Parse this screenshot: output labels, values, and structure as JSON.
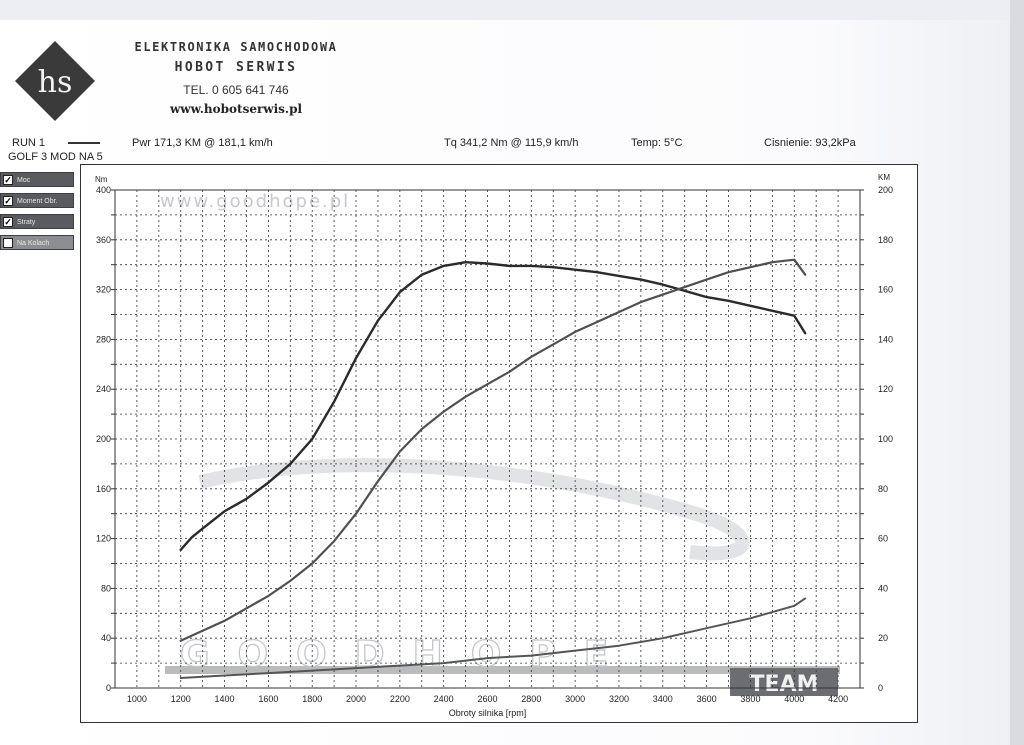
{
  "header": {
    "company": "ELEKTRONIKA SAMOCHODOWA",
    "name": "HOBOT SERWIS",
    "tel": "TEL. 0 605 641 746",
    "website": "www.hobotserwis.pl",
    "logo_text": "hs"
  },
  "run": {
    "label": "RUN 1",
    "car": "GOLF 3 MOD NA 5",
    "power": "Pwr 171,3 KM @ 181,1 km/h",
    "torque": "Tq 341,2 Nm @ 115,9 km/h",
    "temp": "Temp: 5°C",
    "pressure": "Cisnienie: 93,2kPa"
  },
  "legend": [
    {
      "label": "Moc",
      "checked": true
    },
    {
      "label": "Moment Obr.",
      "checked": true
    },
    {
      "label": "Straty",
      "checked": true
    },
    {
      "label": "Na Kolach",
      "checked": false
    }
  ],
  "watermarks": {
    "top": "www.goodhope.pl",
    "bottom": "GOODHOPE",
    "team": "TEAM"
  },
  "colors": {
    "torque": "#2b2b2b",
    "power": "#505050",
    "losses": "#555555",
    "grid": "#333333"
  },
  "chart_data": {
    "type": "line",
    "xlabel": "Obroty silnika [rpm]",
    "ylabel_left": "Nm",
    "ylabel_right": "KM",
    "xlim": [
      900,
      4300
    ],
    "ylim_left": [
      0,
      400
    ],
    "ylim_right": [
      0,
      200
    ],
    "x_ticks": [
      1000,
      1200,
      1400,
      1600,
      1800,
      2000,
      2200,
      2400,
      2600,
      2800,
      3000,
      3200,
      3400,
      3600,
      3800,
      4000,
      4200
    ],
    "y_left_ticks": [
      0,
      40,
      80,
      120,
      160,
      200,
      240,
      280,
      320,
      360,
      400
    ],
    "y_right_ticks": [
      0,
      20,
      40,
      60,
      80,
      100,
      120,
      140,
      160,
      180,
      200
    ],
    "grid": true,
    "series": [
      {
        "axis": "left",
        "x": [
          1200,
          1250,
          1300,
          1400,
          1500,
          1600,
          1700,
          1800,
          1900,
          2000,
          2100,
          2200,
          2300,
          2400,
          2500,
          2600,
          2700,
          2800,
          2900,
          3000,
          3100,
          3200,
          3300,
          3400,
          3500,
          3600,
          3700,
          3800,
          3900,
          4000,
          4050
        ],
        "y": [
          111,
          121,
          128,
          142,
          152,
          165,
          180,
          200,
          230,
          265,
          295,
          318,
          332,
          339,
          342,
          341,
          339,
          339,
          338,
          336,
          334,
          331,
          328,
          324,
          319,
          314,
          311,
          307,
          303,
          299,
          285
        ]
      },
      {
        "axis": "right",
        "x": [
          1200,
          1300,
          1400,
          1500,
          1600,
          1700,
          1800,
          1900,
          2000,
          2100,
          2200,
          2300,
          2400,
          2500,
          2600,
          2700,
          2800,
          2900,
          3000,
          3100,
          3200,
          3300,
          3400,
          3500,
          3600,
          3700,
          3800,
          3900,
          4000,
          4050
        ],
        "y": [
          19,
          23,
          27,
          32,
          37,
          43,
          50,
          59,
          70,
          83,
          95,
          104,
          111,
          117,
          122,
          127,
          133,
          138,
          143,
          147,
          151,
          155,
          158,
          161,
          164,
          167,
          169,
          171,
          172,
          166
        ]
      },
      {
        "axis": "right",
        "x": [
          1200,
          1400,
          1600,
          1800,
          2000,
          2200,
          2400,
          2600,
          2800,
          3000,
          3200,
          3400,
          3600,
          3800,
          4000,
          4050
        ],
        "y": [
          4,
          5,
          6,
          7,
          8,
          9,
          10,
          12,
          13,
          15,
          17,
          20,
          24,
          28,
          33,
          36
        ]
      }
    ]
  }
}
